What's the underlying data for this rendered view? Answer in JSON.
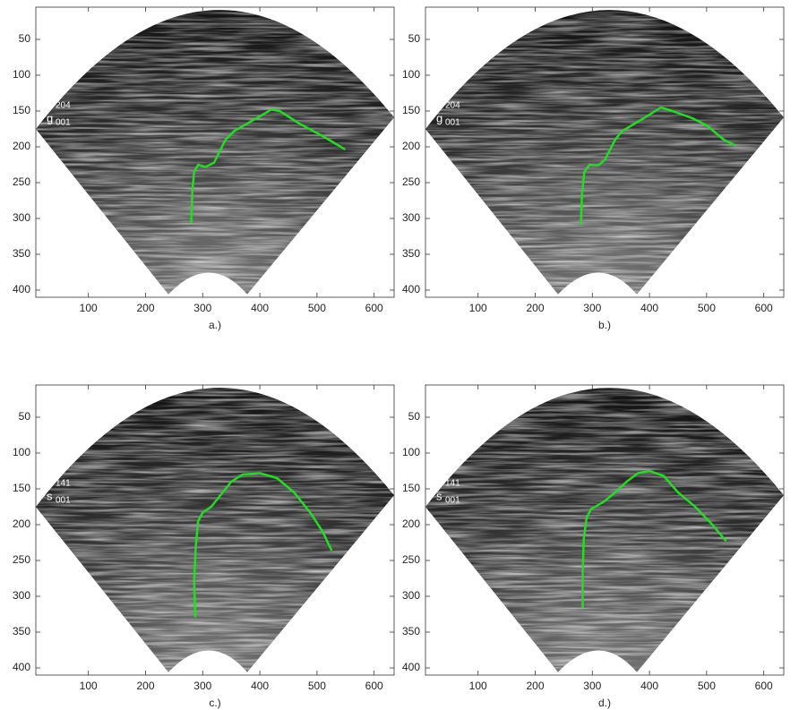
{
  "chart_data": [
    {
      "type": "line",
      "caption": "a.)",
      "overlay_labels": [
        "g",
        "204",
        "001"
      ],
      "xlim": [
        8,
        635
      ],
      "ylim": [
        410,
        5
      ],
      "xticks": [
        100,
        200,
        300,
        400,
        500,
        600
      ],
      "yticks": [
        50,
        100,
        150,
        200,
        250,
        300,
        350,
        400
      ],
      "series": [
        {
          "color": "#22dd22",
          "x": [
            280,
            282,
            285,
            292,
            305,
            320,
            340,
            355,
            390,
            420,
            435,
            470,
            510,
            548
          ],
          "values": [
            305,
            260,
            235,
            225,
            228,
            222,
            190,
            178,
            162,
            148,
            150,
            168,
            185,
            203
          ]
        }
      ]
    },
    {
      "type": "line",
      "caption": "b.)",
      "overlay_labels": [
        "g",
        "204",
        "001"
      ],
      "xlim": [
        8,
        635
      ],
      "ylim": [
        410,
        5
      ],
      "xticks": [
        100,
        200,
        300,
        400,
        500,
        600
      ],
      "yticks": [
        50,
        100,
        150,
        200,
        250,
        300,
        350,
        400
      ],
      "series": [
        {
          "color": "#22dd22",
          "x": [
            280,
            282,
            286,
            295,
            310,
            322,
            340,
            352,
            390,
            420,
            440,
            475,
            500,
            530,
            550
          ],
          "values": [
            308,
            265,
            235,
            225,
            226,
            218,
            190,
            178,
            160,
            145,
            150,
            160,
            170,
            190,
            198
          ]
        }
      ]
    },
    {
      "type": "line",
      "caption": "c.)",
      "overlay_labels": [
        "s",
        "141",
        "001"
      ],
      "xlim": [
        8,
        635
      ],
      "ylim": [
        410,
        5
      ],
      "xticks": [
        100,
        200,
        300,
        400,
        500,
        600
      ],
      "yticks": [
        50,
        100,
        150,
        200,
        250,
        300,
        350,
        400
      ],
      "series": [
        {
          "color": "#22dd22",
          "x": [
            287,
            285,
            288,
            292,
            300,
            315,
            330,
            350,
            370,
            400,
            430,
            460,
            490,
            510,
            525
          ],
          "values": [
            328,
            280,
            230,
            195,
            183,
            175,
            160,
            140,
            130,
            128,
            135,
            155,
            185,
            210,
            235
          ]
        }
      ]
    },
    {
      "type": "line",
      "caption": "d.)",
      "overlay_labels": [
        "s",
        "141",
        "001"
      ],
      "xlim": [
        8,
        635
      ],
      "ylim": [
        410,
        5
      ],
      "xticks": [
        100,
        200,
        300,
        400,
        500,
        600
      ],
      "yticks": [
        50,
        100,
        150,
        200,
        250,
        300,
        350,
        400
      ],
      "series": [
        {
          "color": "#22dd22",
          "x": [
            283,
            283,
            285,
            290,
            298,
            320,
            340,
            360,
            380,
            400,
            425,
            450,
            480,
            510,
            533
          ],
          "values": [
            315,
            270,
            220,
            190,
            178,
            168,
            155,
            140,
            128,
            125,
            132,
            155,
            175,
            200,
            222
          ]
        }
      ]
    }
  ]
}
